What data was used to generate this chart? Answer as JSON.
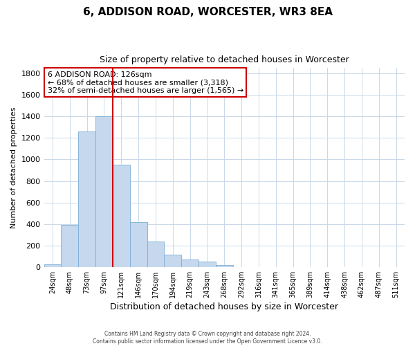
{
  "title": "6, ADDISON ROAD, WORCESTER, WR3 8EA",
  "subtitle": "Size of property relative to detached houses in Worcester",
  "xlabel": "Distribution of detached houses by size in Worcester",
  "ylabel": "Number of detached properties",
  "bar_labels": [
    "24sqm",
    "48sqm",
    "73sqm",
    "97sqm",
    "121sqm",
    "146sqm",
    "170sqm",
    "194sqm",
    "219sqm",
    "243sqm",
    "268sqm",
    "292sqm",
    "316sqm",
    "341sqm",
    "365sqm",
    "389sqm",
    "414sqm",
    "438sqm",
    "462sqm",
    "487sqm",
    "511sqm"
  ],
  "bar_values": [
    25,
    390,
    1260,
    1400,
    950,
    420,
    235,
    112,
    68,
    48,
    15,
    2,
    0,
    0,
    0,
    0,
    0,
    0,
    0,
    0,
    0
  ],
  "bar_color": "#c5d8ed",
  "bar_edgecolor": "#7bafd4",
  "vline_x": 4,
  "vline_color": "#cc0000",
  "ylim": [
    0,
    1850
  ],
  "yticks": [
    0,
    200,
    400,
    600,
    800,
    1000,
    1200,
    1400,
    1600,
    1800
  ],
  "annotation_title": "6 ADDISON ROAD: 126sqm",
  "annotation_line1": "← 68% of detached houses are smaller (3,318)",
  "annotation_line2": "32% of semi-detached houses are larger (1,565) →",
  "annotation_box_color": "#ffffff",
  "annotation_box_edgecolor": "#cc0000",
  "footer1": "Contains HM Land Registry data © Crown copyright and database right 2024.",
  "footer2": "Contains public sector information licensed under the Open Government Licence v3.0.",
  "background_color": "#ffffff",
  "grid_color": "#c8d8e8"
}
